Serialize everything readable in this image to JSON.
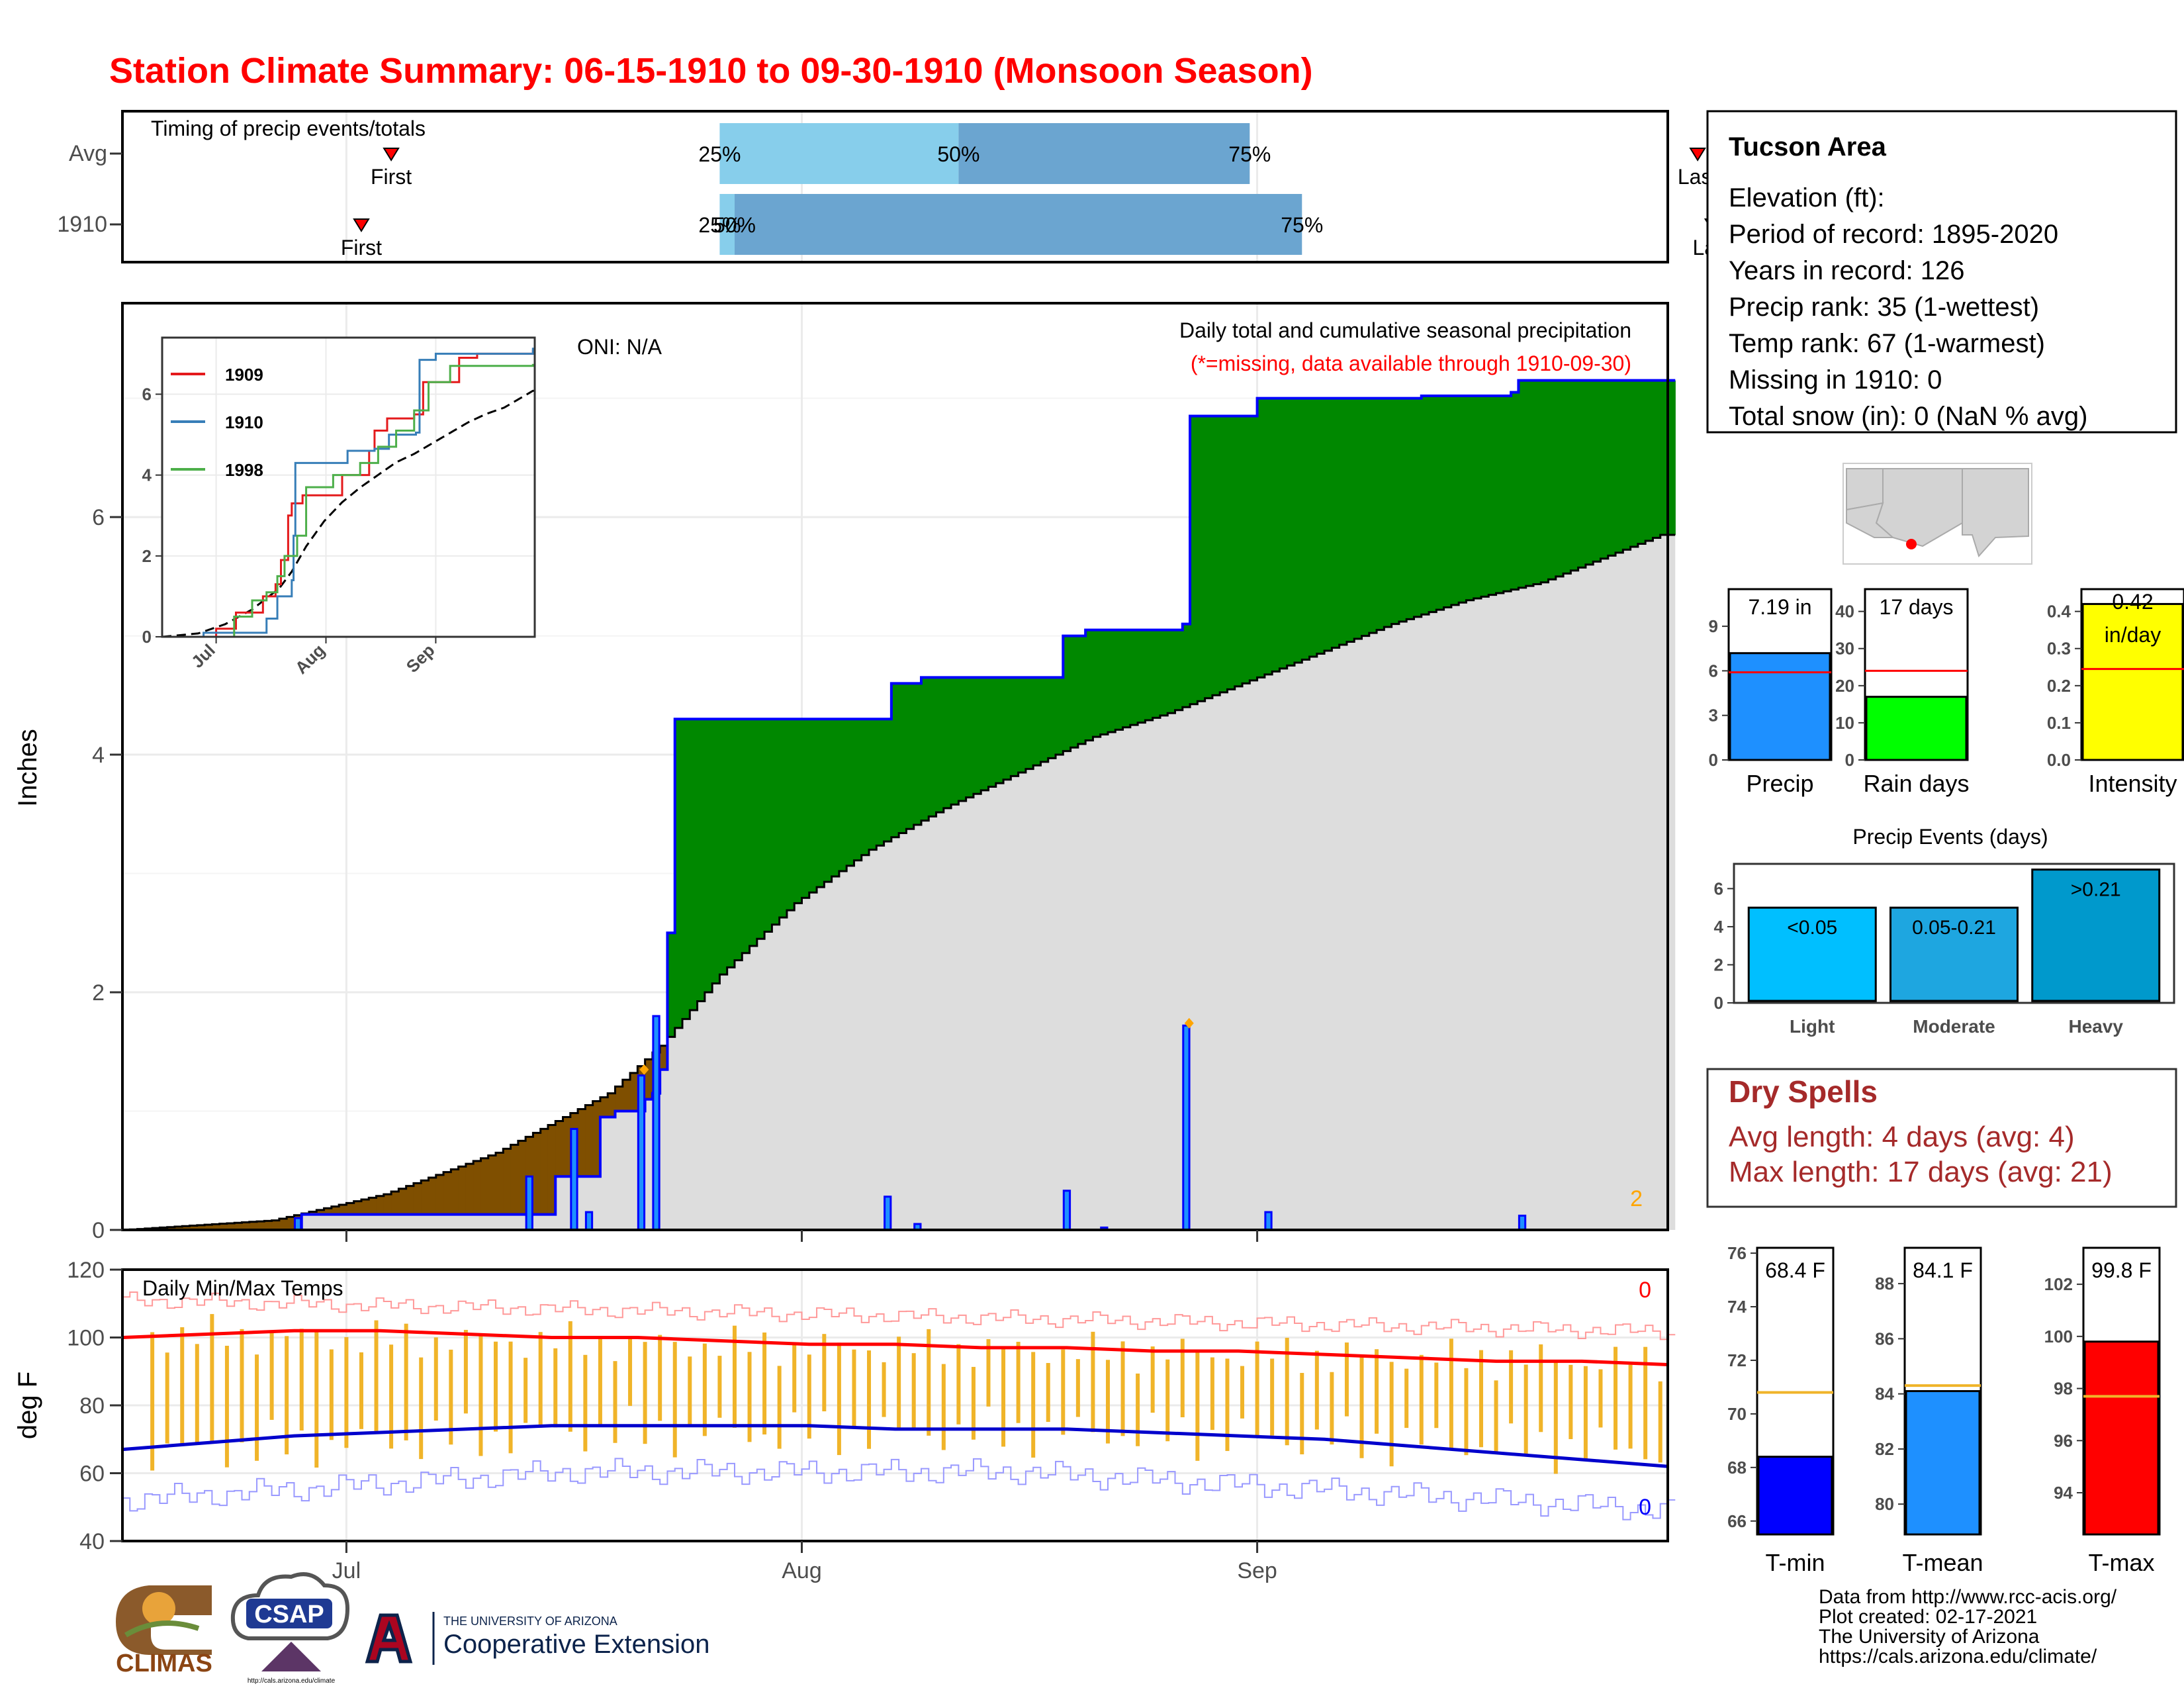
{
  "title": "Station Climate Summary: 06-15-1910 to 09-30-1910 (Monsoon Season)",
  "timing": {
    "panel_label": "Timing of precip events/totals",
    "rows": [
      {
        "label": "Avg",
        "first_day": 36,
        "p25_day": 80,
        "p50_day": 112,
        "p75_day": 151,
        "last_day": 211
      },
      {
        "label": "1910",
        "first_day": 32,
        "p25_day": 80,
        "p50_day": 82,
        "p75_day": 158,
        "last_day": 213
      }
    ],
    "first_text": "First",
    "last_text": "Last",
    "p25_text": "25%",
    "p50_text": "50%",
    "p75_text": "75%"
  },
  "main": {
    "ylabel": "Inches",
    "oni": "ONI: N/A",
    "subtitle": "Daily total and cumulative seasonal precipitation",
    "missing_note": "(*=missing, data available through 1910-09-30)",
    "missing_count": "2",
    "y_ticks": [
      "0",
      "2",
      "4",
      "6"
    ],
    "x_ticks": [
      "Jul",
      "Aug",
      "Sep"
    ],
    "ylim": [
      0,
      7.8
    ],
    "x_domain_days": [
      0,
      207
    ],
    "tick_days": [
      30,
      91,
      152
    ]
  },
  "inset": {
    "legend": [
      "1909",
      "1910",
      "1998"
    ],
    "legend_colors": [
      "#e41a1c",
      "#377eb8",
      "#4daf4a"
    ],
    "y_ticks": [
      "0",
      "2",
      "4",
      "6"
    ],
    "x_ticks": [
      "Jul",
      "Aug",
      "Sep"
    ],
    "ylim": [
      0,
      7.4
    ]
  },
  "temps": {
    "label": "Daily Min/Max Temps",
    "ylabel": "deg F",
    "y_ticks": [
      "40",
      "60",
      "80",
      "100",
      "120"
    ],
    "ylim": [
      40,
      120
    ],
    "max_missing": "0",
    "min_missing": "0"
  },
  "info": {
    "station": "Tucson Area",
    "lines": [
      "Elevation (ft):",
      "Period of record: 1895-2020",
      "Years in record: 126",
      "Precip rank: 35 (1-wettest)",
      "Temp rank: 67 (1-warmest)",
      "Missing in 1910: 0",
      "Total snow (in): 0 (NaN % avg)"
    ]
  },
  "mini_bars": [
    {
      "label": "Precip",
      "value_text": "7.19 in",
      "value": 7.19,
      "avg": 5.9,
      "max": 11.5,
      "ticks": [
        "0",
        "3",
        "6",
        "9"
      ],
      "tick_vals": [
        0,
        3,
        6,
        9
      ],
      "color": "#1e90ff"
    },
    {
      "label": "Rain days",
      "value_text": "17 days",
      "value": 17,
      "avg": 24,
      "max": 46,
      "ticks": [
        "0",
        "10",
        "20",
        "30",
        "40"
      ],
      "tick_vals": [
        0,
        10,
        20,
        30,
        40
      ],
      "color": "#00ff00"
    },
    {
      "label": "Intensity",
      "value_text": "0.42 in/day",
      "value_text_a": "0.42",
      "value_text_b": "in/day",
      "value": 0.42,
      "avg": 0.245,
      "max": 0.46,
      "ticks": [
        "0.0",
        "0.1",
        "0.2",
        "0.3",
        "0.4"
      ],
      "tick_vals": [
        0,
        0.1,
        0.2,
        0.3,
        0.4
      ],
      "color": "#ffff00"
    }
  ],
  "events": {
    "title": "Precip Events (days)",
    "bars": [
      {
        "label": "Light",
        "value": 5,
        "text": "<0.05",
        "color": "#00bfff"
      },
      {
        "label": "Moderate",
        "value": 5,
        "text": "0.05-0.21",
        "color": "#1ea6e0"
      },
      {
        "label": "Heavy",
        "value": 7,
        "text": ">0.21",
        "color": "#0099cc"
      }
    ],
    "ticks": [
      "0",
      "2",
      "4",
      "6"
    ],
    "tick_vals": [
      0,
      2,
      4,
      6
    ],
    "max": 7.3
  },
  "dry": {
    "title": "Dry Spells",
    "avg_line": "Avg length: 4 days (avg: 4)",
    "max_line": "Max length: 17 days (avg: 21)"
  },
  "temp_bars": [
    {
      "label": "T-min",
      "value_text": "68.4 F",
      "value": 68.4,
      "avg": 70.8,
      "min": 65.5,
      "max": 76.2,
      "ticks": [
        "66",
        "68",
        "70",
        "72",
        "74",
        "76"
      ],
      "tick_vals": [
        66,
        68,
        70,
        72,
        74,
        76
      ],
      "color": "#0000ff"
    },
    {
      "label": "T-mean",
      "value_text": "84.1 F",
      "value": 84.1,
      "avg": 84.3,
      "min": 78.9,
      "max": 89.3,
      "ticks": [
        "80",
        "82",
        "84",
        "86",
        "88"
      ],
      "tick_vals": [
        80,
        82,
        84,
        86,
        88
      ],
      "color": "#1e90ff"
    },
    {
      "label": "T-max",
      "value_text": "99.8 F",
      "value": 99.8,
      "avg": 97.7,
      "min": 92.4,
      "max": 103.4,
      "ticks": [
        "94",
        "96",
        "98",
        "100",
        "102"
      ],
      "tick_vals": [
        94,
        96,
        98,
        100,
        102
      ],
      "color": "#ff0000"
    }
  ],
  "footer": {
    "lines": [
      "Data from http://www.rcc-acis.org/",
      "Plot created: 02-17-2021",
      "The University of Arizona",
      "https://cals.arizona.edu/climate/"
    ],
    "climas": "CLIMAS",
    "csap": "CSAP",
    "csap_url": "http://cals.arizona.edu/climate",
    "ua_small": "THE UNIVERSITY OF ARIZONA",
    "ua_big": "Cooperative Extension"
  },
  "colors": {
    "title": "#ff0000",
    "dry": "#a52a2a",
    "obs_fill": "#008800",
    "deficit_fill": "#7f4f00",
    "avg_fill": "#dddddd",
    "daily_bar": "#1e90ff"
  },
  "chart_data": [
    {
      "type": "area",
      "title": "Daily total and cumulative seasonal precipitation",
      "ylabel": "Inches",
      "x_ticks": [
        "Jul",
        "Aug",
        "Sep"
      ],
      "ylim": [
        0,
        7.8
      ],
      "series": [
        {
          "name": "Cumulative 1910",
          "points": [
            [
              0,
              0
            ],
            [
              23,
              0
            ],
            [
              24,
              0.13
            ],
            [
              57,
              0.13
            ],
            [
              58,
              0.45
            ],
            [
              63,
              0.45
            ],
            [
              64,
              0.95
            ],
            [
              66,
              1.0
            ],
            [
              70,
              1.1
            ],
            [
              71,
              1.15
            ],
            [
              72,
              1.35
            ],
            [
              73,
              2.5
            ],
            [
              74,
              4.3
            ],
            [
              102,
              4.3
            ],
            [
              103,
              4.6
            ],
            [
              106,
              4.6
            ],
            [
              107,
              4.65
            ],
            [
              118,
              4.65
            ],
            [
              126,
              5.0
            ],
            [
              129,
              5.05
            ],
            [
              141,
              5.05
            ],
            [
              142,
              5.1
            ],
            [
              143,
              6.85
            ],
            [
              151,
              6.85
            ],
            [
              152,
              7.0
            ],
            [
              174,
              7.02
            ],
            [
              186,
              7.05
            ],
            [
              187,
              7.15
            ],
            [
              206,
              7.15
            ]
          ]
        },
        {
          "name": "Cumulative average",
          "points": [
            [
              0,
              0
            ],
            [
              20,
              0.08
            ],
            [
              35,
              0.3
            ],
            [
              50,
              0.65
            ],
            [
              65,
              1.15
            ],
            [
              72,
              1.55
            ],
            [
              80,
              2.15
            ],
            [
              90,
              2.75
            ],
            [
              100,
              3.2
            ],
            [
              110,
              3.55
            ],
            [
              120,
              3.85
            ],
            [
              130,
              4.15
            ],
            [
              140,
              4.35
            ],
            [
              150,
              4.6
            ],
            [
              160,
              4.85
            ],
            [
              170,
              5.1
            ],
            [
              180,
              5.3
            ],
            [
              190,
              5.45
            ],
            [
              200,
              5.7
            ],
            [
              206,
              5.85
            ]
          ]
        }
      ],
      "daily": [
        [
          23,
          0.1
        ],
        [
          54,
          0.45
        ],
        [
          60,
          0.85
        ],
        [
          62,
          0.15
        ],
        [
          69,
          1.3
        ],
        [
          71,
          1.8
        ],
        [
          102,
          0.28
        ],
        [
          106,
          0.05
        ],
        [
          126,
          0.33
        ],
        [
          131,
          0.02
        ],
        [
          142,
          1.72
        ],
        [
          153,
          0.15
        ],
        [
          187,
          0.12
        ]
      ]
    },
    {
      "type": "line",
      "title": "Daily Min/Max Temps",
      "ylabel": "deg F",
      "ylim": [
        40,
        120
      ],
      "series": [
        {
          "name": "avg max",
          "values": [
            100,
            101,
            102,
            102,
            101,
            100,
            100,
            99,
            98,
            98,
            97,
            97,
            96,
            96,
            95,
            94,
            93,
            93,
            92
          ]
        },
        {
          "name": "avg min",
          "values": [
            67,
            69,
            71,
            72,
            73,
            74,
            74,
            74,
            74,
            73,
            73,
            73,
            72,
            71,
            70,
            68,
            66,
            64,
            62
          ]
        }
      ]
    }
  ]
}
